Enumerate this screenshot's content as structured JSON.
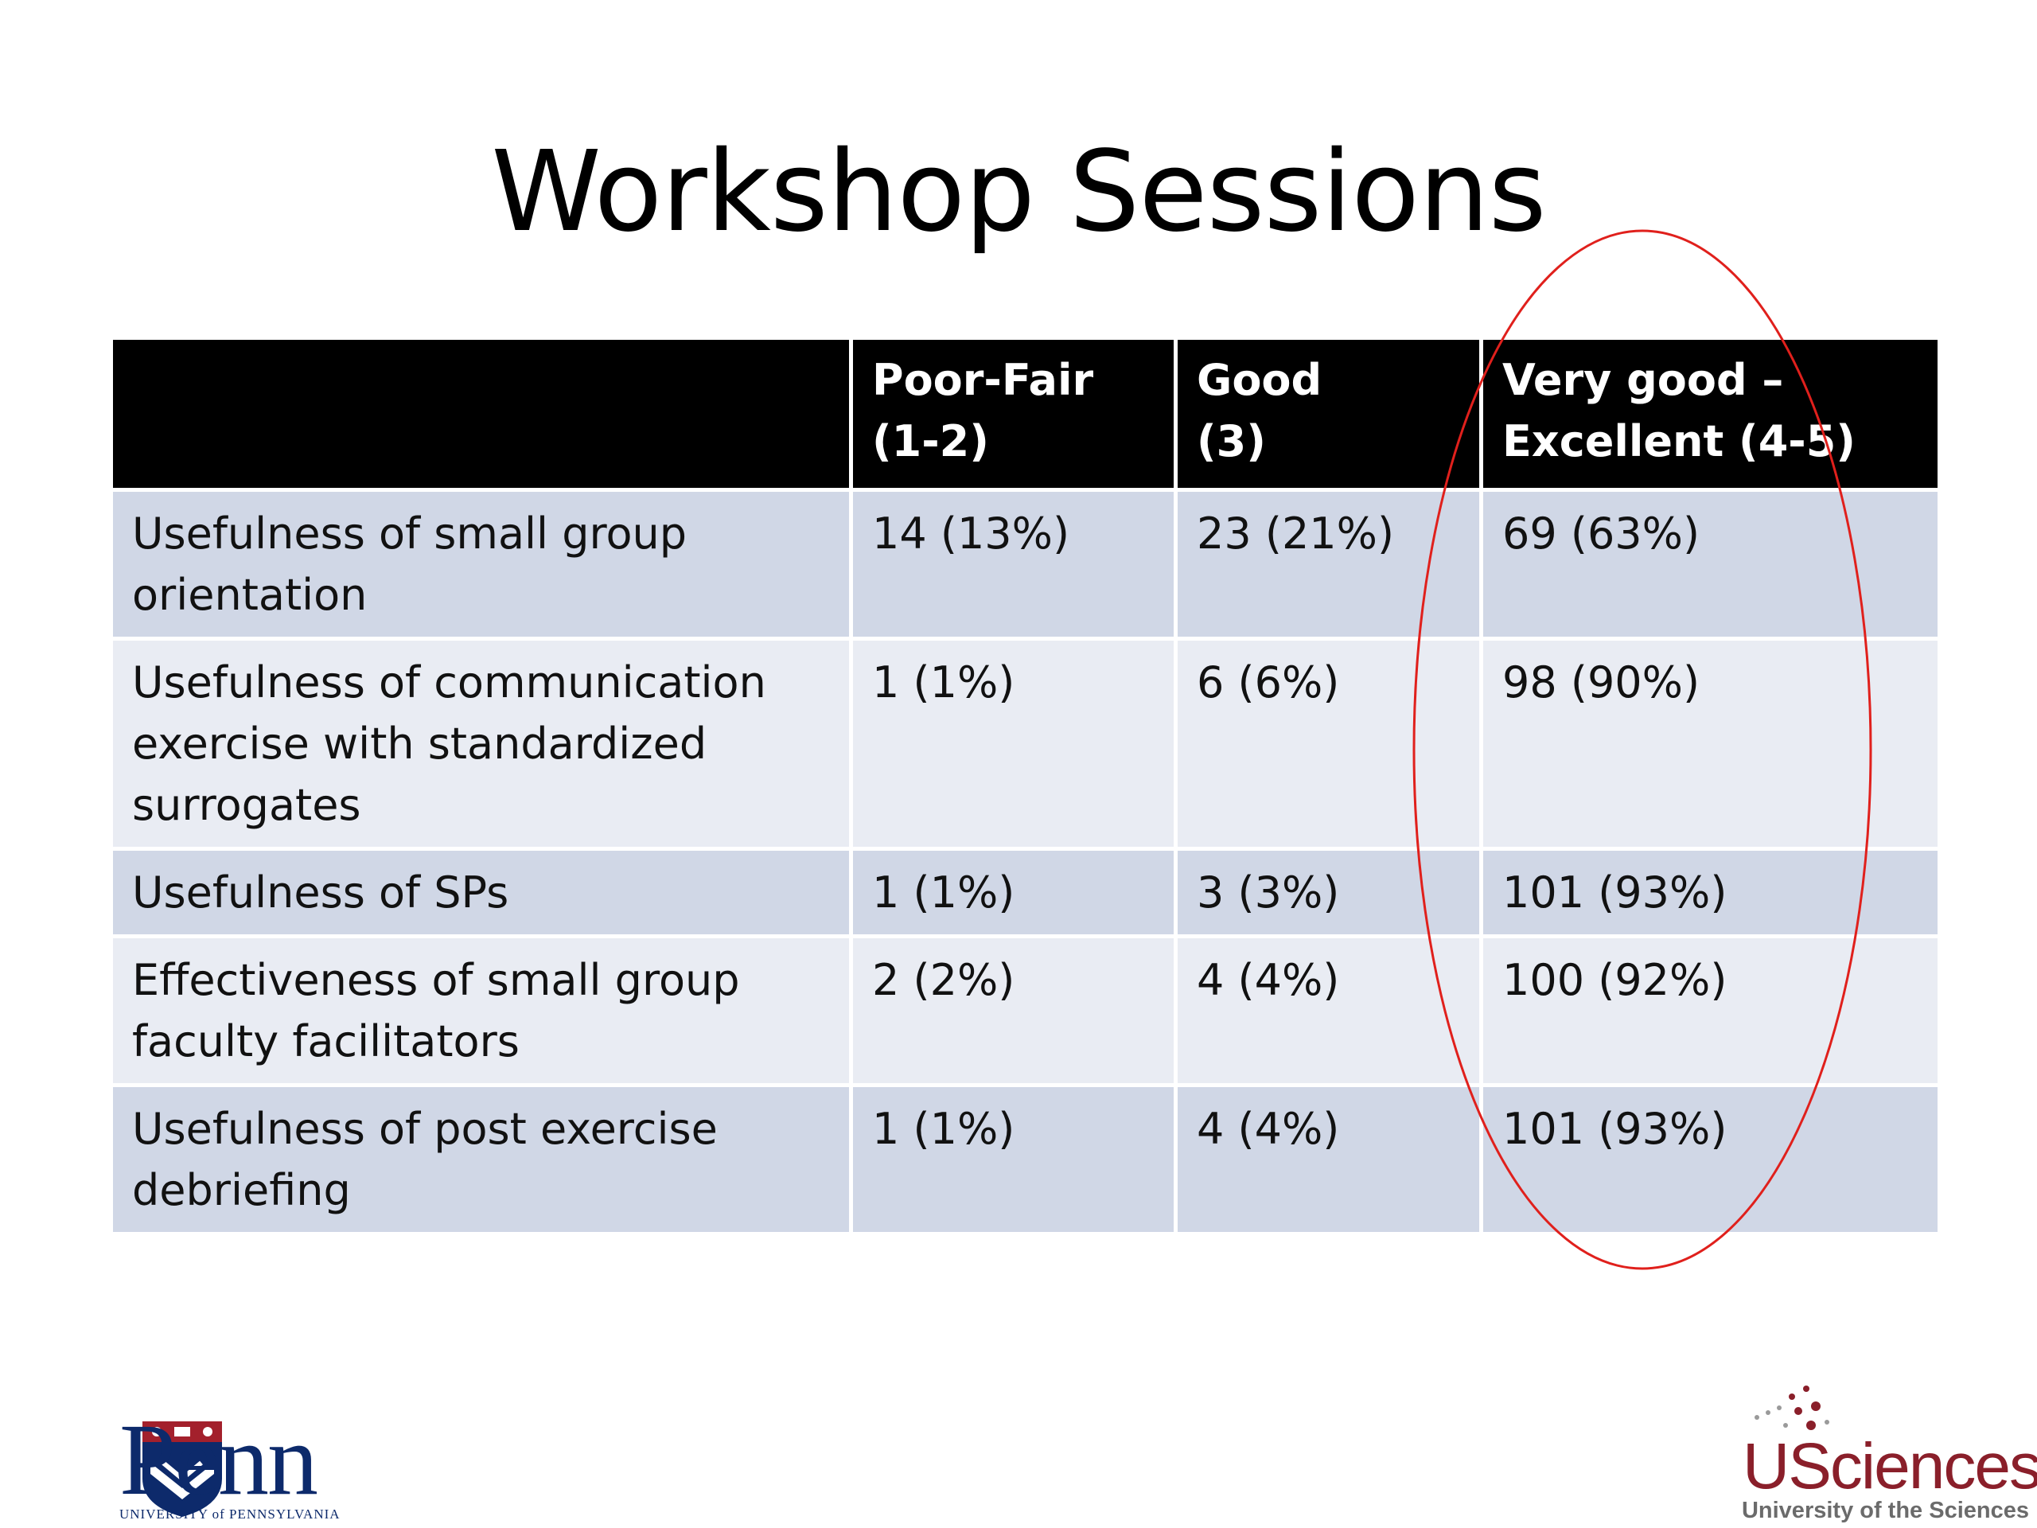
{
  "slide": {
    "title": "Workshop Sessions"
  },
  "table": {
    "headers": [
      "",
      "Poor-Fair\n(1-2)",
      "Good\n(3)",
      "Very good –\nExcellent (4-5)"
    ],
    "rows": [
      [
        "Usefulness of small group orientation",
        "14 (13%)",
        "23 (21%)",
        "69 (63%)"
      ],
      [
        "Usefulness of communication exercise with standardized surrogates",
        "1 (1%)",
        "6 (6%)",
        "98 (90%)"
      ],
      [
        "Usefulness of SPs",
        "1 (1%)",
        "3 (3%)",
        "101 (93%)"
      ],
      [
        "Effectiveness of small group faculty facilitators",
        "2 (2%)",
        "4 (4%)",
        "100 (92%)"
      ],
      [
        "Usefulness of post exercise debriefing",
        "1 (1%)",
        "4 (4%)",
        "101 (93%)"
      ]
    ]
  },
  "annotation": {
    "highlight_color": "#e0201c",
    "shape": "ellipse"
  },
  "logos": {
    "penn": {
      "name": "Penn",
      "subtitle": "UNIVERSITY of PENNSYLVANIA",
      "color": "#0d2a6b"
    },
    "usciences": {
      "name": "USciences",
      "subtitle": "University of the Sciences",
      "color": "#8a1f2a"
    }
  }
}
